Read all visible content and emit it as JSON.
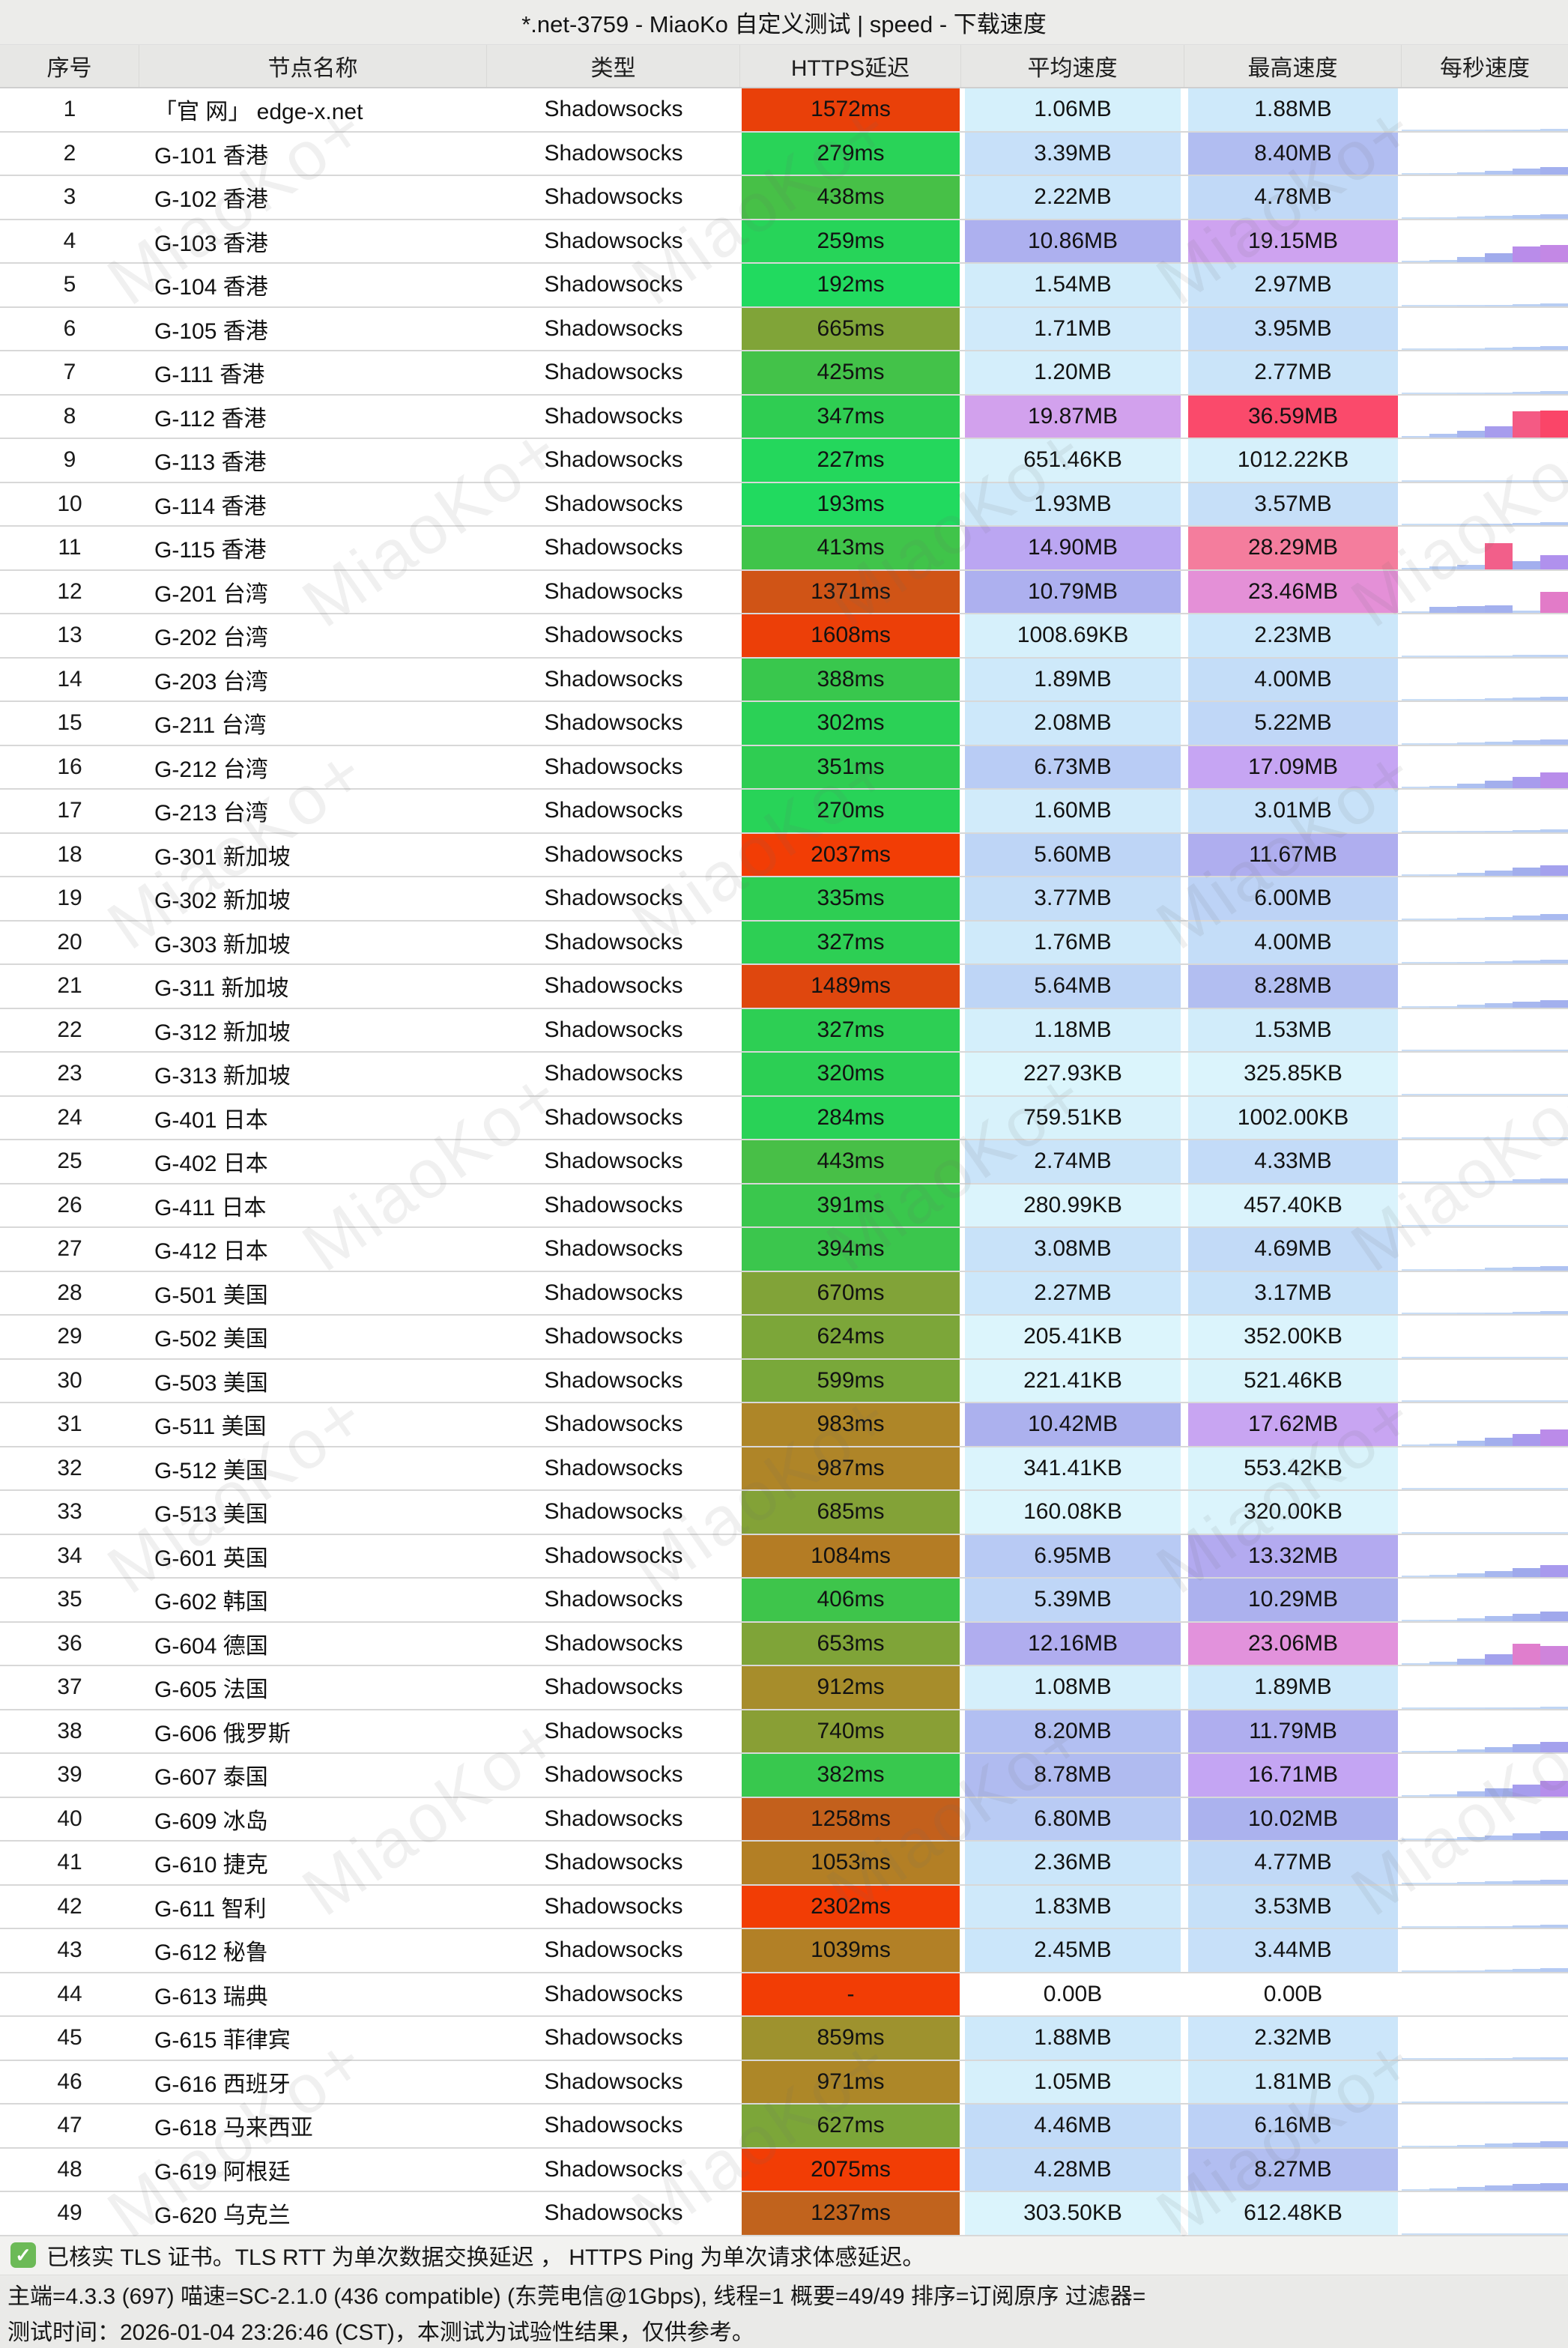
{
  "title": "*.net-3759 - MiaoKo 自定义测试 | speed - 下载速度",
  "watermark": "MiaoKo+",
  "columns": [
    "序号",
    "节点名称",
    "类型",
    "HTTPS延迟",
    "平均速度",
    "最高速度",
    "每秒速度"
  ],
  "footer": {
    "check_icon": "✓",
    "line1": "已核实 TLS 证书。TLS RTT 为单次数据交换延迟 ， HTTPS Ping 为单次请求体感延迟。",
    "line2": "主端=4.3.3 (697) 喵速=SC-2.1.0 (436 compatible) (东莞电信@1Gbps), 线程=1 概要=49/49 排序=订阅原序 过滤器=",
    "line3": "测试时间：2026-01-04 23:26:46 (CST)，本测试为试验性结果，仅供参考。"
  },
  "palette": {
    "latency_stops": [
      [
        150,
        "#1ede62"
      ],
      [
        250,
        "#26d55a"
      ],
      [
        350,
        "#2fcd52"
      ],
      [
        450,
        "#4abe46"
      ],
      [
        600,
        "#79a83a"
      ],
      [
        750,
        "#8a9e35"
      ],
      [
        900,
        "#a68e2c"
      ],
      [
        1000,
        "#b08427"
      ],
      [
        1100,
        "#b57b24"
      ],
      [
        1250,
        "#c2611c"
      ],
      [
        1400,
        "#d35114"
      ],
      [
        1550,
        "#e8400a"
      ],
      [
        1700,
        "#f23d05"
      ]
    ],
    "speed_stops": [
      [
        0,
        "#ddf6fc"
      ],
      [
        1,
        "#d6f0fb"
      ],
      [
        2,
        "#cde8fa"
      ],
      [
        4,
        "#c4ddf8"
      ],
      [
        6,
        "#bdd3f6"
      ],
      [
        8,
        "#b3c0f2"
      ],
      [
        10,
        "#abb2ee"
      ],
      [
        13,
        "#b2abf0"
      ],
      [
        15,
        "#bba6f2"
      ],
      [
        17,
        "#c6a5f3"
      ],
      [
        19,
        "#cda4f1"
      ],
      [
        21,
        "#d89ce8"
      ],
      [
        23,
        "#e292dd"
      ],
      [
        26,
        "#ee88b8"
      ],
      [
        28,
        "#f480a0"
      ],
      [
        31,
        "#f8637f"
      ],
      [
        36,
        "#fa4a6b"
      ]
    ],
    "spark_stops": [
      [
        0.5,
        "#cadef5"
      ],
      [
        3,
        "#b7cdf3"
      ],
      [
        6,
        "#a9baf0"
      ],
      [
        10,
        "#9fa9ec"
      ],
      [
        15,
        "#ad92ee"
      ],
      [
        19,
        "#c288e6"
      ],
      [
        23,
        "#e07ece"
      ],
      [
        28,
        "#f2608c"
      ],
      [
        34,
        "#fa4568"
      ]
    ]
  },
  "rows": [
    {
      "i": 1,
      "name": "「官 网」 edge-x.net",
      "type": "Shadowsocks",
      "lat": "1572ms",
      "ms": 1572,
      "avg": "1.06MB",
      "avgv": 1.06,
      "max": "1.88MB",
      "maxv": 1.88,
      "spark": [
        0.3,
        0.4,
        0.5,
        0.65,
        0.8,
        1
      ]
    },
    {
      "i": 2,
      "name": "G-101 香港",
      "type": "Shadowsocks",
      "lat": "279ms",
      "ms": 279,
      "avg": "3.39MB",
      "avgv": 3.39,
      "max": "8.40MB",
      "maxv": 8.4,
      "spark": [
        0.08,
        0.16,
        0.3,
        0.5,
        0.75,
        1
      ]
    },
    {
      "i": 3,
      "name": "G-102 香港",
      "type": "Shadowsocks",
      "lat": "438ms",
      "ms": 438,
      "avg": "2.22MB",
      "avgv": 2.22,
      "max": "4.78MB",
      "maxv": 4.78,
      "spark": [
        0.1,
        0.2,
        0.35,
        0.55,
        0.8,
        1
      ]
    },
    {
      "i": 4,
      "name": "G-103 香港",
      "type": "Shadowsocks",
      "lat": "259ms",
      "ms": 259,
      "avg": "10.86MB",
      "avgv": 10.86,
      "max": "19.15MB",
      "maxv": 19.15,
      "spark": [
        0.06,
        0.14,
        0.3,
        0.5,
        0.9,
        1
      ]
    },
    {
      "i": 5,
      "name": "G-104 香港",
      "type": "Shadowsocks",
      "lat": "192ms",
      "ms": 192,
      "avg": "1.54MB",
      "avgv": 1.54,
      "max": "2.97MB",
      "maxv": 2.97,
      "spark": [
        0.1,
        0.2,
        0.35,
        0.55,
        0.8,
        1
      ]
    },
    {
      "i": 6,
      "name": "G-105 香港",
      "type": "Shadowsocks",
      "lat": "665ms",
      "ms": 665,
      "avg": "1.71MB",
      "avgv": 1.71,
      "max": "3.95MB",
      "maxv": 3.95,
      "spark": [
        0.1,
        0.2,
        0.35,
        0.55,
        0.8,
        1
      ]
    },
    {
      "i": 7,
      "name": "G-111 香港",
      "type": "Shadowsocks",
      "lat": "425ms",
      "ms": 425,
      "avg": "1.20MB",
      "avgv": 1.2,
      "max": "2.77MB",
      "maxv": 2.77,
      "spark": [
        0.1,
        0.2,
        0.35,
        0.55,
        0.8,
        1
      ]
    },
    {
      "i": 8,
      "name": "G-112 香港",
      "type": "Shadowsocks",
      "lat": "347ms",
      "ms": 347,
      "avg": "19.87MB",
      "avgv": 19.87,
      "max": "36.59MB",
      "maxv": 36.59,
      "spark": [
        0.05,
        0.12,
        0.2,
        0.35,
        0.8,
        1
      ]
    },
    {
      "i": 9,
      "name": "G-113 香港",
      "type": "Shadowsocks",
      "lat": "227ms",
      "ms": 227,
      "avg": "651.46KB",
      "avgv": 0.64,
      "max": "1012.22KB",
      "maxv": 0.99,
      "spark": [
        0.5,
        0.6,
        0.7,
        0.8,
        0.9,
        1
      ]
    },
    {
      "i": 10,
      "name": "G-114 香港",
      "type": "Shadowsocks",
      "lat": "193ms",
      "ms": 193,
      "avg": "1.93MB",
      "avgv": 1.93,
      "max": "3.57MB",
      "maxv": 3.57,
      "spark": [
        0.1,
        0.2,
        0.35,
        0.55,
        0.8,
        1
      ]
    },
    {
      "i": 11,
      "name": "G-115 香港",
      "type": "Shadowsocks",
      "lat": "413ms",
      "ms": 413,
      "avg": "14.90MB",
      "avgv": 14.9,
      "max": "28.29MB",
      "maxv": 28.29,
      "spark": [
        0.05,
        0.1,
        0.15,
        1,
        0.3,
        0.55
      ]
    },
    {
      "i": 12,
      "name": "G-201 台湾",
      "type": "Shadowsocks",
      "lat": "1371ms",
      "ms": 1371,
      "avg": "10.79MB",
      "avgv": 10.79,
      "max": "23.46MB",
      "maxv": 23.46,
      "spark": [
        0.08,
        0.3,
        0.33,
        0.36,
        0.1,
        1
      ]
    },
    {
      "i": 13,
      "name": "G-202 台湾",
      "type": "Shadowsocks",
      "lat": "1608ms",
      "ms": 1608,
      "avg": "1008.69KB",
      "avgv": 0.98,
      "max": "2.23MB",
      "maxv": 2.23,
      "spark": [
        0.3,
        0.4,
        0.5,
        0.65,
        0.8,
        1
      ]
    },
    {
      "i": 14,
      "name": "G-203 台湾",
      "type": "Shadowsocks",
      "lat": "388ms",
      "ms": 388,
      "avg": "1.89MB",
      "avgv": 1.89,
      "max": "4.00MB",
      "maxv": 4.0,
      "spark": [
        0.1,
        0.2,
        0.35,
        0.55,
        0.8,
        1
      ]
    },
    {
      "i": 15,
      "name": "G-211 台湾",
      "type": "Shadowsocks",
      "lat": "302ms",
      "ms": 302,
      "avg": "2.08MB",
      "avgv": 2.08,
      "max": "5.22MB",
      "maxv": 5.22,
      "spark": [
        0.1,
        0.2,
        0.35,
        0.55,
        0.8,
        1
      ]
    },
    {
      "i": 16,
      "name": "G-212 台湾",
      "type": "Shadowsocks",
      "lat": "351ms",
      "ms": 351,
      "avg": "6.73MB",
      "avgv": 6.73,
      "max": "17.09MB",
      "maxv": 17.09,
      "spark": [
        0.06,
        0.14,
        0.3,
        0.5,
        0.75,
        1
      ]
    },
    {
      "i": 17,
      "name": "G-213 台湾",
      "type": "Shadowsocks",
      "lat": "270ms",
      "ms": 270,
      "avg": "1.60MB",
      "avgv": 1.6,
      "max": "3.01MB",
      "maxv": 3.01,
      "spark": [
        0.1,
        0.2,
        0.35,
        0.55,
        0.8,
        1
      ]
    },
    {
      "i": 18,
      "name": "G-301 新加坡",
      "type": "Shadowsocks",
      "lat": "2037ms",
      "ms": 2037,
      "avg": "5.60MB",
      "avgv": 5.6,
      "max": "11.67MB",
      "maxv": 11.67,
      "spark": [
        0.08,
        0.16,
        0.3,
        0.5,
        0.75,
        1
      ]
    },
    {
      "i": 19,
      "name": "G-302 新加坡",
      "type": "Shadowsocks",
      "lat": "335ms",
      "ms": 335,
      "avg": "3.77MB",
      "avgv": 3.77,
      "max": "6.00MB",
      "maxv": 6.0,
      "spark": [
        0.1,
        0.2,
        0.35,
        0.55,
        0.8,
        1
      ]
    },
    {
      "i": 20,
      "name": "G-303 新加坡",
      "type": "Shadowsocks",
      "lat": "327ms",
      "ms": 327,
      "avg": "1.76MB",
      "avgv": 1.76,
      "max": "4.00MB",
      "maxv": 4.0,
      "spark": [
        0.1,
        0.2,
        0.35,
        0.55,
        0.8,
        1
      ]
    },
    {
      "i": 21,
      "name": "G-311 新加坡",
      "type": "Shadowsocks",
      "lat": "1489ms",
      "ms": 1489,
      "avg": "5.64MB",
      "avgv": 5.64,
      "max": "8.28MB",
      "maxv": 8.28,
      "spark": [
        0.1,
        0.2,
        0.35,
        0.55,
        0.8,
        1
      ]
    },
    {
      "i": 22,
      "name": "G-312 新加坡",
      "type": "Shadowsocks",
      "lat": "327ms",
      "ms": 327,
      "avg": "1.18MB",
      "avgv": 1.18,
      "max": "1.53MB",
      "maxv": 1.53,
      "spark": [
        0.3,
        0.4,
        0.5,
        0.65,
        0.8,
        1
      ]
    },
    {
      "i": 23,
      "name": "G-313 新加坡",
      "type": "Shadowsocks",
      "lat": "320ms",
      "ms": 320,
      "avg": "227.93KB",
      "avgv": 0.22,
      "max": "325.85KB",
      "maxv": 0.32,
      "spark": [
        0.5,
        0.6,
        0.7,
        0.8,
        0.9,
        1
      ]
    },
    {
      "i": 24,
      "name": "G-401 日本",
      "type": "Shadowsocks",
      "lat": "284ms",
      "ms": 284,
      "avg": "759.51KB",
      "avgv": 0.74,
      "max": "1002.00KB",
      "maxv": 0.98,
      "spark": [
        0.5,
        0.6,
        0.7,
        0.8,
        0.9,
        1
      ]
    },
    {
      "i": 25,
      "name": "G-402 日本",
      "type": "Shadowsocks",
      "lat": "443ms",
      "ms": 443,
      "avg": "2.74MB",
      "avgv": 2.74,
      "max": "4.33MB",
      "maxv": 4.33,
      "spark": [
        0.1,
        0.2,
        0.35,
        0.55,
        0.8,
        1
      ]
    },
    {
      "i": 26,
      "name": "G-411 日本",
      "type": "Shadowsocks",
      "lat": "391ms",
      "ms": 391,
      "avg": "280.99KB",
      "avgv": 0.27,
      "max": "457.40KB",
      "maxv": 0.45,
      "spark": [
        0.5,
        0.6,
        0.7,
        0.8,
        0.9,
        1
      ]
    },
    {
      "i": 27,
      "name": "G-412 日本",
      "type": "Shadowsocks",
      "lat": "394ms",
      "ms": 394,
      "avg": "3.08MB",
      "avgv": 3.08,
      "max": "4.69MB",
      "maxv": 4.69,
      "spark": [
        0.1,
        0.2,
        0.35,
        0.55,
        0.8,
        1
      ]
    },
    {
      "i": 28,
      "name": "G-501 美国",
      "type": "Shadowsocks",
      "lat": "670ms",
      "ms": 670,
      "avg": "2.27MB",
      "avgv": 2.27,
      "max": "3.17MB",
      "maxv": 3.17,
      "spark": [
        0.1,
        0.2,
        0.35,
        0.55,
        0.8,
        1
      ]
    },
    {
      "i": 29,
      "name": "G-502 美国",
      "type": "Shadowsocks",
      "lat": "624ms",
      "ms": 624,
      "avg": "205.41KB",
      "avgv": 0.2,
      "max": "352.00KB",
      "maxv": 0.34,
      "spark": [
        0.5,
        0.6,
        0.7,
        0.8,
        0.9,
        1
      ]
    },
    {
      "i": 30,
      "name": "G-503 美国",
      "type": "Shadowsocks",
      "lat": "599ms",
      "ms": 599,
      "avg": "221.41KB",
      "avgv": 0.22,
      "max": "521.46KB",
      "maxv": 0.51,
      "spark": [
        0.5,
        0.6,
        0.7,
        0.8,
        0.9,
        1
      ]
    },
    {
      "i": 31,
      "name": "G-511 美国",
      "type": "Shadowsocks",
      "lat": "983ms",
      "ms": 983,
      "avg": "10.42MB",
      "avgv": 10.42,
      "max": "17.62MB",
      "maxv": 17.62,
      "spark": [
        0.06,
        0.14,
        0.3,
        0.5,
        0.75,
        1
      ]
    },
    {
      "i": 32,
      "name": "G-512 美国",
      "type": "Shadowsocks",
      "lat": "987ms",
      "ms": 987,
      "avg": "341.41KB",
      "avgv": 0.33,
      "max": "553.42KB",
      "maxv": 0.54,
      "spark": [
        0.5,
        0.6,
        0.7,
        0.8,
        0.9,
        1
      ]
    },
    {
      "i": 33,
      "name": "G-513 美国",
      "type": "Shadowsocks",
      "lat": "685ms",
      "ms": 685,
      "avg": "160.08KB",
      "avgv": 0.16,
      "max": "320.00KB",
      "maxv": 0.31,
      "spark": [
        0.5,
        0.6,
        0.7,
        0.8,
        0.9,
        1
      ]
    },
    {
      "i": 34,
      "name": "G-601 英国",
      "type": "Shadowsocks",
      "lat": "1084ms",
      "ms": 1084,
      "avg": "6.95MB",
      "avgv": 6.95,
      "max": "13.32MB",
      "maxv": 13.32,
      "spark": [
        0.08,
        0.16,
        0.3,
        0.5,
        0.75,
        1
      ]
    },
    {
      "i": 35,
      "name": "G-602 韩国",
      "type": "Shadowsocks",
      "lat": "406ms",
      "ms": 406,
      "avg": "5.39MB",
      "avgv": 5.39,
      "max": "10.29MB",
      "maxv": 10.29,
      "spark": [
        0.08,
        0.16,
        0.3,
        0.5,
        0.75,
        1
      ]
    },
    {
      "i": 36,
      "name": "G-604 德国",
      "type": "Shadowsocks",
      "lat": "653ms",
      "ms": 653,
      "avg": "12.16MB",
      "avgv": 12.16,
      "max": "23.06MB",
      "maxv": 23.06,
      "spark": [
        0.06,
        0.14,
        0.3,
        0.5,
        1,
        0.9
      ]
    },
    {
      "i": 37,
      "name": "G-605 法国",
      "type": "Shadowsocks",
      "lat": "912ms",
      "ms": 912,
      "avg": "1.08MB",
      "avgv": 1.08,
      "max": "1.89MB",
      "maxv": 1.89,
      "spark": [
        0.3,
        0.4,
        0.5,
        0.65,
        0.8,
        1
      ]
    },
    {
      "i": 38,
      "name": "G-606 俄罗斯",
      "type": "Shadowsocks",
      "lat": "740ms",
      "ms": 740,
      "avg": "8.20MB",
      "avgv": 8.2,
      "max": "11.79MB",
      "maxv": 11.79,
      "spark": [
        0.08,
        0.16,
        0.3,
        0.5,
        0.75,
        1
      ]
    },
    {
      "i": 39,
      "name": "G-607 泰国",
      "type": "Shadowsocks",
      "lat": "382ms",
      "ms": 382,
      "avg": "8.78MB",
      "avgv": 8.78,
      "max": "16.71MB",
      "maxv": 16.71,
      "spark": [
        0.06,
        0.14,
        0.3,
        0.5,
        0.75,
        1
      ]
    },
    {
      "i": 40,
      "name": "G-609 冰岛",
      "type": "Shadowsocks",
      "lat": "1258ms",
      "ms": 1258,
      "avg": "6.80MB",
      "avgv": 6.8,
      "max": "10.02MB",
      "maxv": 10.02,
      "spark": [
        0.08,
        0.16,
        0.3,
        0.5,
        0.75,
        1
      ]
    },
    {
      "i": 41,
      "name": "G-610 捷克",
      "type": "Shadowsocks",
      "lat": "1053ms",
      "ms": 1053,
      "avg": "2.36MB",
      "avgv": 2.36,
      "max": "4.77MB",
      "maxv": 4.77,
      "spark": [
        0.1,
        0.2,
        0.35,
        0.55,
        0.8,
        1
      ]
    },
    {
      "i": 42,
      "name": "G-611 智利",
      "type": "Shadowsocks",
      "lat": "2302ms",
      "ms": 2302,
      "avg": "1.83MB",
      "avgv": 1.83,
      "max": "3.53MB",
      "maxv": 3.53,
      "spark": [
        0.1,
        0.2,
        0.35,
        0.55,
        0.8,
        1
      ]
    },
    {
      "i": 43,
      "name": "G-612 秘鲁",
      "type": "Shadowsocks",
      "lat": "1039ms",
      "ms": 1039,
      "avg": "2.45MB",
      "avgv": 2.45,
      "max": "3.44MB",
      "maxv": 3.44,
      "spark": [
        0.1,
        0.2,
        0.35,
        0.55,
        0.8,
        1
      ]
    },
    {
      "i": 44,
      "name": "G-613 瑞典",
      "type": "Shadowsocks",
      "lat": "-",
      "ms": null,
      "avg": "0.00B",
      "avgv": 0,
      "max": "0.00B",
      "maxv": 0,
      "spark": [
        0,
        0,
        0,
        0,
        0,
        0
      ]
    },
    {
      "i": 45,
      "name": "G-615 菲律宾",
      "type": "Shadowsocks",
      "lat": "859ms",
      "ms": 859,
      "avg": "1.88MB",
      "avgv": 1.88,
      "max": "2.32MB",
      "maxv": 2.32,
      "spark": [
        0.3,
        0.4,
        0.5,
        0.65,
        0.8,
        1
      ]
    },
    {
      "i": 46,
      "name": "G-616 西班牙",
      "type": "Shadowsocks",
      "lat": "971ms",
      "ms": 971,
      "avg": "1.05MB",
      "avgv": 1.05,
      "max": "1.81MB",
      "maxv": 1.81,
      "spark": [
        0.3,
        0.4,
        0.5,
        0.65,
        0.8,
        1
      ]
    },
    {
      "i": 47,
      "name": "G-618 马来西亚",
      "type": "Shadowsocks",
      "lat": "627ms",
      "ms": 627,
      "avg": "4.46MB",
      "avgv": 4.46,
      "max": "6.16MB",
      "maxv": 6.16,
      "spark": [
        0.1,
        0.2,
        0.35,
        0.55,
        0.8,
        1
      ]
    },
    {
      "i": 48,
      "name": "G-619 阿根廷",
      "type": "Shadowsocks",
      "lat": "2075ms",
      "ms": 2075,
      "avg": "4.28MB",
      "avgv": 4.28,
      "max": "8.27MB",
      "maxv": 8.27,
      "spark": [
        0.1,
        0.3,
        0.5,
        0.7,
        0.9,
        1
      ]
    },
    {
      "i": 49,
      "name": "G-620 乌克兰",
      "type": "Shadowsocks",
      "lat": "1237ms",
      "ms": 1237,
      "avg": "303.50KB",
      "avgv": 0.3,
      "max": "612.48KB",
      "maxv": 0.6,
      "spark": [
        0.5,
        0.6,
        0.7,
        0.8,
        0.9,
        1
      ]
    }
  ]
}
